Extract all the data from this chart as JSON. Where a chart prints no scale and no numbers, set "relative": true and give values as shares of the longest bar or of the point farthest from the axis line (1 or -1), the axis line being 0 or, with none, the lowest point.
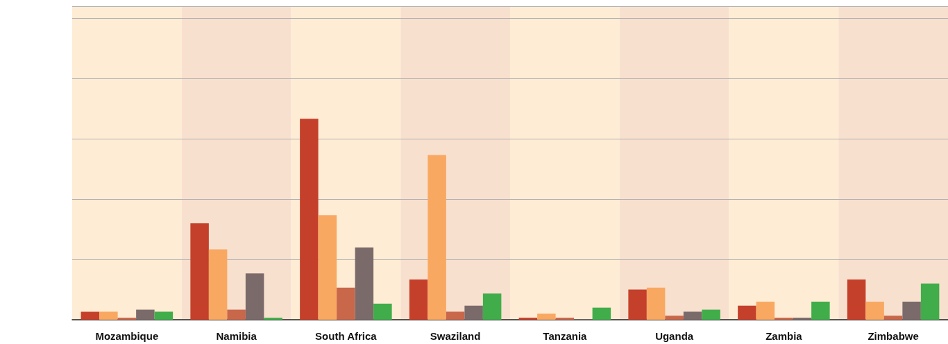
{
  "chart_data": {
    "type": "bar",
    "relative": true,
    "grid": "y",
    "bands": [
      {
        "axis": "x",
        "from": "Mozambique",
        "to": "Mozambique",
        "color": "#feecd4"
      },
      {
        "axis": "x",
        "from": "Namibia",
        "to": "Namibia",
        "color": "#f8e0cf"
      },
      {
        "axis": "x",
        "from": "South Africa",
        "to": "South Africa",
        "color": "#feecd4"
      },
      {
        "axis": "x",
        "from": "Swaziland",
        "to": "Swaziland",
        "color": "#f8e0cf"
      },
      {
        "axis": "x",
        "from": "Tanzania",
        "to": "Tanzania",
        "color": "#feecd4"
      },
      {
        "axis": "x",
        "from": "Uganda",
        "to": "Uganda",
        "color": "#f8e0cf"
      },
      {
        "axis": "x",
        "from": "Zambia",
        "to": "Zambia",
        "color": "#feecd4"
      },
      {
        "axis": "x",
        "from": "Zimbabwe",
        "to": "Zimbabwe",
        "color": "#f8e0cf"
      }
    ],
    "categories": [
      "Mozambique",
      "Namibia",
      "South Africa",
      "Swaziland",
      "Tanzania",
      "Uganda",
      "Zambia",
      "Zimbabwe"
    ],
    "series": [
      {
        "color": "#c4402a",
        "values": [
          0.04,
          0.48,
          1,
          0.2,
          0.01,
          0.15,
          0.07,
          0.2
        ]
      },
      {
        "color": "#f9a862",
        "values": [
          0.04,
          0.35,
          0.52,
          0.82,
          0.03,
          0.16,
          0.09,
          0.09
        ]
      },
      {
        "color": "#c8674a",
        "values": [
          0.01,
          0.05,
          0.16,
          0.04,
          0.01,
          0.02,
          0.01,
          0.02
        ]
      },
      {
        "color": "#7b6a6a",
        "values": [
          0.05,
          0.23,
          0.36,
          0.07,
          0.003,
          0.04,
          0.01,
          0.09
        ]
      },
      {
        "color": "#40ad4a",
        "values": [
          0.04,
          0.01,
          0.08,
          0.13,
          0.06,
          0.05,
          0.09,
          0.18
        ]
      }
    ]
  }
}
